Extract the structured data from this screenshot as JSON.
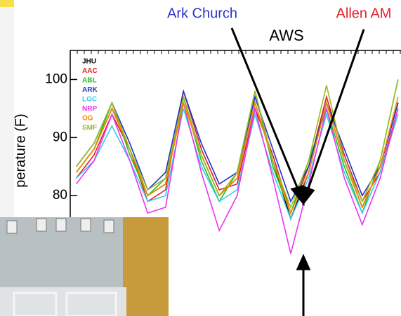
{
  "chart_data": {
    "type": "line",
    "annotations": [
      {
        "text": "Ark Church",
        "color": "#2b35c8"
      },
      {
        "text": "AWS",
        "color": "#000000"
      },
      {
        "text": "Allen AM",
        "color": "#e8202a"
      }
    ],
    "ylabel": "perature (F)",
    "x": [
      2,
      8,
      14,
      20,
      26,
      32,
      38,
      44,
      50,
      56,
      62,
      68,
      74,
      80,
      86,
      92,
      98,
      104,
      110
    ],
    "xlim": [
      0,
      111
    ],
    "ylim": [
      60,
      105
    ],
    "yticks": [
      80,
      90,
      100
    ],
    "series": [
      {
        "name": "JHU",
        "color": "#000000",
        "values": [
          84,
          88,
          95,
          88,
          80,
          82,
          97,
          87,
          80,
          83,
          96,
          86,
          76,
          84,
          96,
          86,
          78,
          85,
          96
        ]
      },
      {
        "name": "AAC",
        "color": "#e02020",
        "values": [
          83,
          87,
          94,
          88,
          79,
          81,
          98,
          88,
          81,
          82,
          95,
          87,
          77,
          85,
          97,
          87,
          79,
          84,
          95
        ]
      },
      {
        "name": "ABL",
        "color": "#22c022",
        "values": [
          84,
          88,
          96,
          87,
          80,
          83,
          97,
          86,
          79,
          84,
          98,
          85,
          77,
          86,
          95,
          85,
          77,
          86,
          100
        ]
      },
      {
        "name": "ARK",
        "color": "#2233cc",
        "values": [
          85,
          89,
          96,
          89,
          81,
          84,
          98,
          89,
          82,
          84,
          97,
          88,
          79,
          85,
          96,
          88,
          80,
          85,
          96
        ]
      },
      {
        "name": "LGC",
        "color": "#33ccee",
        "values": [
          83,
          86,
          92,
          86,
          79,
          80,
          95,
          85,
          79,
          81,
          94,
          84,
          76,
          83,
          94,
          84,
          77,
          84,
          94
        ]
      },
      {
        "name": "NRP",
        "color": "#ee33ee",
        "values": [
          82,
          86,
          94,
          86,
          77,
          78,
          96,
          84,
          74,
          80,
          95,
          83,
          70,
          82,
          95,
          83,
          75,
          83,
          95
        ]
      },
      {
        "name": "OG",
        "color": "#ff8800",
        "values": [
          84,
          88,
          95,
          88,
          80,
          82,
          96,
          87,
          80,
          83,
          96,
          86,
          77,
          84,
          96,
          86,
          78,
          85,
          97
        ]
      },
      {
        "name": "SMF",
        "color": "#99bb22",
        "values": [
          85,
          89,
          96,
          88,
          81,
          83,
          97,
          87,
          80,
          84,
          98,
          86,
          78,
          86,
          99,
          86,
          79,
          86,
          100
        ]
      }
    ]
  }
}
